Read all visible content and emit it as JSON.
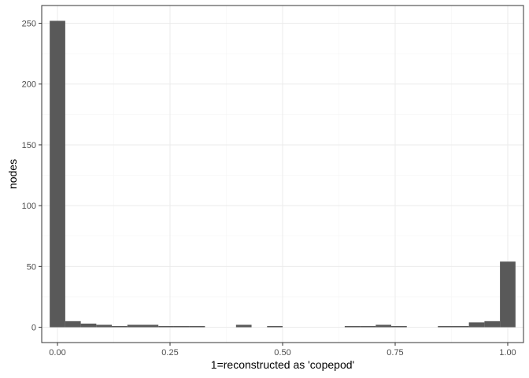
{
  "chart_data": {
    "type": "bar",
    "xlabel": "1=reconstructed as 'copepod'",
    "ylabel": "nodes",
    "xlim": [
      -0.035,
      1.035
    ],
    "ylim": [
      -12.6,
      264.6
    ],
    "bin_width": 0.0345,
    "x_ticks": [
      0,
      0.25,
      0.5,
      0.75,
      1
    ],
    "x_tick_labels": [
      "0.00",
      "0.25",
      "0.50",
      "0.75",
      "1.00"
    ],
    "y_ticks": [
      0,
      50,
      100,
      150,
      200,
      250
    ],
    "y_tick_labels": [
      "0",
      "50",
      "100",
      "150",
      "200",
      "250"
    ],
    "grid": true,
    "x": [
      0.0,
      0.0345,
      0.069,
      0.1034,
      0.1379,
      0.1724,
      0.2069,
      0.2414,
      0.2759,
      0.3103,
      0.3448,
      0.3793,
      0.4138,
      0.4483,
      0.4828,
      0.5172,
      0.5517,
      0.5862,
      0.6207,
      0.6552,
      0.6897,
      0.7241,
      0.7586,
      0.7931,
      0.8276,
      0.8621,
      0.8966,
      0.931,
      0.9655,
      1.0
    ],
    "values": [
      252,
      5,
      3,
      2,
      1,
      2,
      2,
      1,
      1,
      1,
      0,
      0,
      2,
      0,
      1,
      0,
      0,
      0,
      0,
      1,
      1,
      2,
      1,
      0,
      0,
      1,
      1,
      4,
      5,
      54
    ],
    "colors": {
      "bar": "#595959",
      "grid_major": "#ebebeb",
      "grid_minor": "#f5f5f5",
      "panel_border": "#333333",
      "tick": "#333333"
    }
  }
}
